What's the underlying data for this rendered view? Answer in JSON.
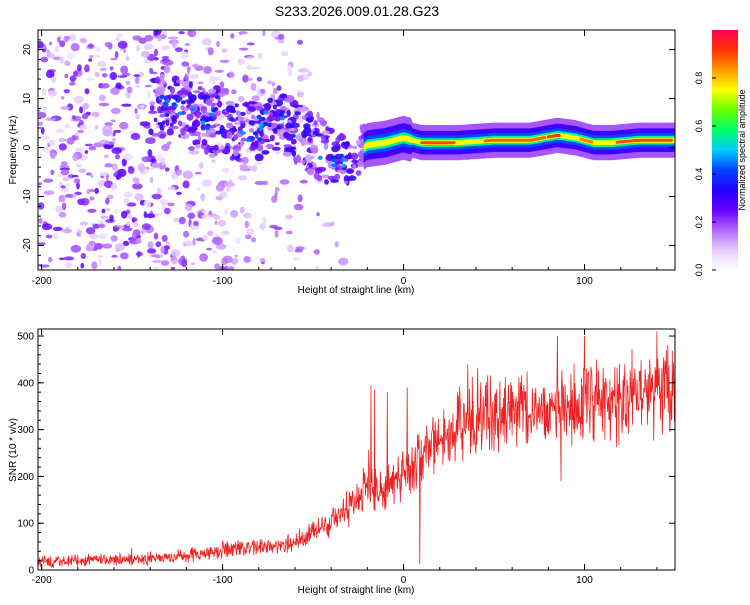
{
  "title": "S233.2026.009.01.28.G23",
  "colors": {
    "axis": "#000000",
    "snr_line": "#ee2222",
    "background": "#ffffff"
  },
  "chart_data": [
    {
      "id": "spectrogram",
      "type": "heatmap",
      "title": "S233.2026.009.01.28.G23",
      "xlabel": "Height of straight line (km)",
      "ylabel": "Frequency (Hz)",
      "xlim": [
        -202,
        150
      ],
      "ylim": [
        -25,
        24
      ],
      "xticks": [
        -200,
        -100,
        0,
        100
      ],
      "xtick_labels": [
        "-200",
        "-100",
        "0",
        "100"
      ],
      "yticks": [
        -20,
        -10,
        0,
        10,
        20
      ],
      "ytick_labels": [
        "-20",
        "-10",
        "0",
        "10",
        "20"
      ],
      "colorbar": {
        "label": "Normalized spectral amplitude",
        "range": [
          0,
          1
        ],
        "ticks": [
          0,
          0.2,
          0.4,
          0.6,
          0.8
        ],
        "tick_labels": [
          "0.0",
          "0.2",
          "0.4",
          "0.6",
          "0.8"
        ],
        "colormap": [
          "#ffffff",
          "#e6ccff",
          "#b366ff",
          "#6600ff",
          "#2200ff",
          "#0044ff",
          "#00ccff",
          "#00ff66",
          "#66ff00",
          "#ffff00",
          "#ff9900",
          "#ff3300",
          "#ff0055"
        ]
      },
      "ridge": [
        {
          "x": -135,
          "f": 8.5
        },
        {
          "x": -120,
          "f": 8
        },
        {
          "x": -110,
          "f": 5
        },
        {
          "x": -100,
          "f": 6
        },
        {
          "x": -90,
          "f": 2
        },
        {
          "x": -80,
          "f": 4
        },
        {
          "x": -70,
          "f": 6
        },
        {
          "x": -60,
          "f": 4
        },
        {
          "x": -50,
          "f": 1
        },
        {
          "x": -40,
          "f": -2
        },
        {
          "x": -30,
          "f": -3
        },
        {
          "x": -25,
          "f": -1
        },
        {
          "x": -20,
          "f": 0.5
        },
        {
          "x": -10,
          "f": 1
        },
        {
          "x": 0,
          "f": 2
        },
        {
          "x": 10,
          "f": 1
        },
        {
          "x": 30,
          "f": 1
        },
        {
          "x": 50,
          "f": 1.5
        },
        {
          "x": 70,
          "f": 1.5
        },
        {
          "x": 85,
          "f": 2.5
        },
        {
          "x": 95,
          "f": 2
        },
        {
          "x": 105,
          "f": 1
        },
        {
          "x": 115,
          "f": 1
        },
        {
          "x": 130,
          "f": 1.5
        },
        {
          "x": 150,
          "f": 1.5
        }
      ]
    },
    {
      "id": "snr",
      "type": "line",
      "title": "",
      "xlabel": "Height of straight line (km)",
      "ylabel": "SNR (10 * v/v)",
      "xlim": [
        -202,
        150
      ],
      "ylim": [
        0,
        515
      ],
      "xticks": [
        -200,
        -100,
        0,
        100
      ],
      "xtick_labels": [
        "-200",
        "-100",
        "0",
        "100"
      ],
      "yticks": [
        0,
        100,
        200,
        300,
        400,
        500
      ],
      "ytick_labels": [
        "0",
        "100",
        "200",
        "300",
        "400",
        "500"
      ],
      "trend": [
        {
          "x": -202,
          "y": 18
        },
        {
          "x": -180,
          "y": 20
        },
        {
          "x": -160,
          "y": 22
        },
        {
          "x": -140,
          "y": 25
        },
        {
          "x": -120,
          "y": 30
        },
        {
          "x": -100,
          "y": 42
        },
        {
          "x": -80,
          "y": 48
        },
        {
          "x": -60,
          "y": 60
        },
        {
          "x": -40,
          "y": 100
        },
        {
          "x": -30,
          "y": 130
        },
        {
          "x": -20,
          "y": 180
        },
        {
          "x": -10,
          "y": 170
        },
        {
          "x": 0,
          "y": 205
        },
        {
          "x": 10,
          "y": 240
        },
        {
          "x": 20,
          "y": 280
        },
        {
          "x": 30,
          "y": 300
        },
        {
          "x": 40,
          "y": 330
        },
        {
          "x": 60,
          "y": 335
        },
        {
          "x": 80,
          "y": 345
        },
        {
          "x": 100,
          "y": 355
        },
        {
          "x": 120,
          "y": 365
        },
        {
          "x": 140,
          "y": 385
        },
        {
          "x": 150,
          "y": 395
        }
      ],
      "noise_fraction": 0.17,
      "notable_points": [
        {
          "x": -18,
          "y": 395
        },
        {
          "x": -16,
          "y": 385
        },
        {
          "x": -9,
          "y": 380
        },
        {
          "x": 9,
          "y": 12
        },
        {
          "x": 2,
          "y": 390
        },
        {
          "x": 85,
          "y": 500
        },
        {
          "x": 100,
          "y": 500
        },
        {
          "x": 140,
          "y": 510
        },
        {
          "x": 87,
          "y": 190
        },
        {
          "x": 148,
          "y": 320
        }
      ]
    }
  ]
}
